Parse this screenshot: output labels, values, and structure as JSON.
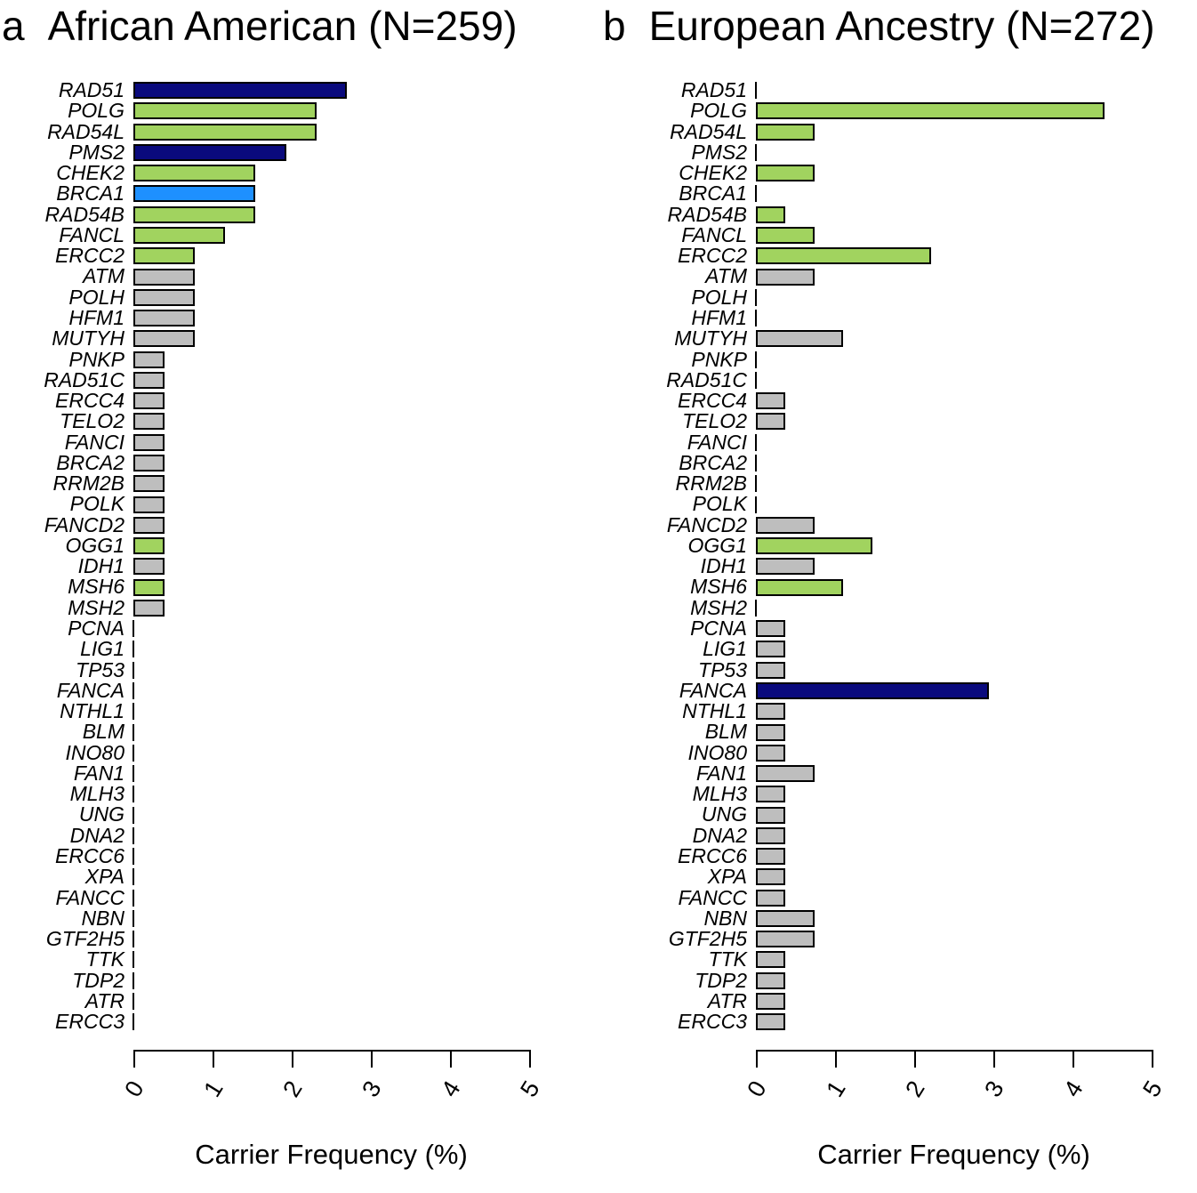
{
  "figure": {
    "xlabel": "Carrier Frequency (%)",
    "palette": {
      "navy": "#0A0A7D",
      "green": "#A1D35F",
      "blue": "#1E90FF",
      "gray": "#BEBEBE",
      "none": "transparent"
    }
  },
  "chart_data": [
    {
      "type": "bar",
      "orientation": "horizontal",
      "tag": "a",
      "title": "African American (N=259)",
      "xlabel": "Carrier Frequency (%)",
      "xlim": [
        0,
        5
      ],
      "xticks": [
        "0",
        "1",
        "2",
        "3",
        "4",
        "5"
      ],
      "grid": false,
      "legend": false,
      "categories": [
        "RAD51",
        "POLG",
        "RAD54L",
        "PMS2",
        "CHEK2",
        "BRCA1",
        "RAD54B",
        "FANCL",
        "ERCC2",
        "ATM",
        "POLH",
        "HFM1",
        "MUTYH",
        "PNKP",
        "RAD51C",
        "ERCC4",
        "TELO2",
        "FANCI",
        "BRCA2",
        "RRM2B",
        "POLK",
        "FANCD2",
        "OGG1",
        "IDH1",
        "MSH6",
        "MSH2",
        "PCNA",
        "LIG1",
        "TP53",
        "FANCA",
        "NTHL1",
        "BLM",
        "INO80",
        "FAN1",
        "MLH3",
        "UNG",
        "DNA2",
        "ERCC6",
        "XPA",
        "FANCC",
        "NBN",
        "GTF2H5",
        "TTK",
        "TDP2",
        "ATR",
        "ERCC3"
      ],
      "values": [
        2.7,
        2.32,
        2.32,
        1.93,
        1.54,
        1.54,
        1.54,
        1.16,
        0.77,
        0.77,
        0.77,
        0.77,
        0.77,
        0.39,
        0.39,
        0.39,
        0.39,
        0.39,
        0.39,
        0.39,
        0.39,
        0.39,
        0.39,
        0.39,
        0.39,
        0.39,
        0,
        0,
        0,
        0,
        0,
        0,
        0,
        0,
        0,
        0,
        0,
        0,
        0,
        0,
        0,
        0,
        0,
        0,
        0,
        0
      ],
      "bar_colors": [
        "navy",
        "green",
        "green",
        "navy",
        "green",
        "blue",
        "green",
        "green",
        "green",
        "gray",
        "gray",
        "gray",
        "gray",
        "gray",
        "gray",
        "gray",
        "gray",
        "gray",
        "gray",
        "gray",
        "gray",
        "gray",
        "green",
        "gray",
        "green",
        "gray",
        "none",
        "none",
        "none",
        "none",
        "none",
        "none",
        "none",
        "none",
        "none",
        "none",
        "none",
        "none",
        "none",
        "none",
        "none",
        "none",
        "none",
        "none",
        "none",
        "none"
      ]
    },
    {
      "type": "bar",
      "orientation": "horizontal",
      "tag": "b",
      "title": "European Ancestry (N=272)",
      "xlabel": "Carrier Frequency (%)",
      "xlim": [
        0,
        5
      ],
      "xticks": [
        "0",
        "1",
        "2",
        "3",
        "4",
        "5"
      ],
      "grid": false,
      "legend": false,
      "categories": [
        "RAD51",
        "POLG",
        "RAD54L",
        "PMS2",
        "CHEK2",
        "BRCA1",
        "RAD54B",
        "FANCL",
        "ERCC2",
        "ATM",
        "POLH",
        "HFM1",
        "MUTYH",
        "PNKP",
        "RAD51C",
        "ERCC4",
        "TELO2",
        "FANCI",
        "BRCA2",
        "RRM2B",
        "POLK",
        "FANCD2",
        "OGG1",
        "IDH1",
        "MSH6",
        "MSH2",
        "PCNA",
        "LIG1",
        "TP53",
        "FANCA",
        "NTHL1",
        "BLM",
        "INO80",
        "FAN1",
        "MLH3",
        "UNG",
        "DNA2",
        "ERCC6",
        "XPA",
        "FANCC",
        "NBN",
        "GTF2H5",
        "TTK",
        "TDP2",
        "ATR",
        "ERCC3"
      ],
      "values": [
        0,
        4.41,
        0.74,
        0,
        0.74,
        0,
        0.37,
        0.74,
        2.21,
        0.74,
        0,
        0,
        1.1,
        0,
        0,
        0.37,
        0.37,
        0,
        0,
        0,
        0,
        0.74,
        1.47,
        0.74,
        1.1,
        0,
        0.37,
        0.37,
        0.37,
        2.94,
        0.37,
        0.37,
        0.37,
        0.74,
        0.37,
        0.37,
        0.37,
        0.37,
        0.37,
        0.37,
        0.74,
        0.74,
        0.37,
        0.37,
        0.37,
        0.37
      ],
      "bar_colors": [
        "none",
        "green",
        "green",
        "none",
        "green",
        "none",
        "green",
        "green",
        "green",
        "gray",
        "none",
        "none",
        "gray",
        "none",
        "none",
        "gray",
        "gray",
        "none",
        "none",
        "none",
        "none",
        "gray",
        "green",
        "gray",
        "green",
        "none",
        "gray",
        "gray",
        "gray",
        "navy",
        "gray",
        "gray",
        "gray",
        "gray",
        "gray",
        "gray",
        "gray",
        "gray",
        "gray",
        "gray",
        "gray",
        "gray",
        "gray",
        "gray",
        "gray",
        "gray"
      ]
    }
  ]
}
